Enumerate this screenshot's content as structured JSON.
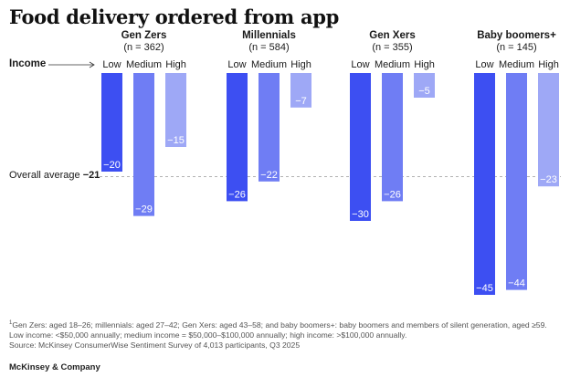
{
  "title": "Food delivery ordered from app",
  "income_label": "Income",
  "income_levels": [
    "Low",
    "Medium",
    "High"
  ],
  "overall_average": {
    "label": "Overall average",
    "value_label": "−21",
    "value": -21
  },
  "colors": {
    "low": "#3d4ff2",
    "medium": "#6f7df4",
    "high": "#9ea8f6",
    "label_text": "#ffffff",
    "avg_line": "#999999"
  },
  "chart_data": {
    "type": "bar",
    "title": "Food delivery ordered from app",
    "categories": [
      "Low",
      "Medium",
      "High"
    ],
    "groups": [
      {
        "name": "Gen Zers",
        "n": "(n = 362)",
        "values": [
          -20,
          -29,
          -15
        ],
        "labels": [
          "−20",
          "−29",
          "−15"
        ]
      },
      {
        "name": "Millennials",
        "n": "(n = 584)",
        "values": [
          -26,
          -22,
          -7
        ],
        "labels": [
          "−26",
          "−22",
          "−7"
        ]
      },
      {
        "name": "Gen Xers",
        "n": "(n = 355)",
        "values": [
          -30,
          -26,
          -5
        ],
        "labels": [
          "−30",
          "−26",
          "−5"
        ]
      },
      {
        "name": "Baby boomers+",
        "n": "(n = 145)",
        "values": [
          -45,
          -44,
          -23
        ],
        "labels": [
          "−45",
          "−44",
          "−23"
        ]
      }
    ],
    "ylim": [
      -45,
      0
    ],
    "reference_line": -21
  },
  "footnote": {
    "marker": "1",
    "text": "Gen Zers: aged 18–26; millennials: aged 27–42; Gen Xers: aged 43–58; and baby boomers+: baby boomers and members of silent generation, aged ≥59. Low income: <$50,000 annually; medium income = $50,000–$100,000 annually; high income: >$100,000 annually.",
    "source": "Source: McKinsey ConsumerWise Sentiment Survey of 4,013 participants, Q3 2025"
  },
  "brand": "McKinsey & Company"
}
